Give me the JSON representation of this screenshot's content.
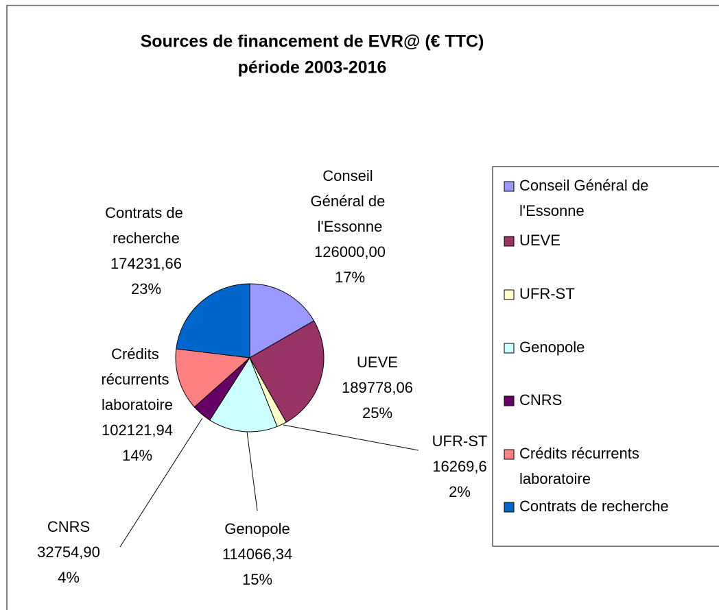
{
  "chart_data": {
    "type": "pie",
    "title": "Sources de financement de EVR@ (€ TTC)",
    "subtitle": "période 2003-2016",
    "categories": [
      "Conseil Général de l'Essonne",
      "UEVE",
      "UFR-ST",
      "Genopole",
      "CNRS",
      "Crédits récurrents laboratoire",
      "Contrats de recherche"
    ],
    "values": [
      126000,
      189778.06,
      16269.6,
      114066.34,
      32754.9,
      102121.94,
      174231.66
    ],
    "value_labels": [
      "126000,00",
      "189778,06",
      "16269,6",
      "114066,34",
      "32754,90",
      "102121,94",
      "174231,66"
    ],
    "percentages": [
      17,
      25,
      2,
      15,
      4,
      14,
      23
    ],
    "percentage_labels": [
      "17%",
      "25%",
      "2%",
      "15%",
      "4%",
      "14%",
      "23%"
    ],
    "colors": [
      "#9999ff",
      "#993366",
      "#ffffcc",
      "#ccffff",
      "#660066",
      "#ff8080",
      "#0066cc"
    ],
    "legend": "right"
  }
}
